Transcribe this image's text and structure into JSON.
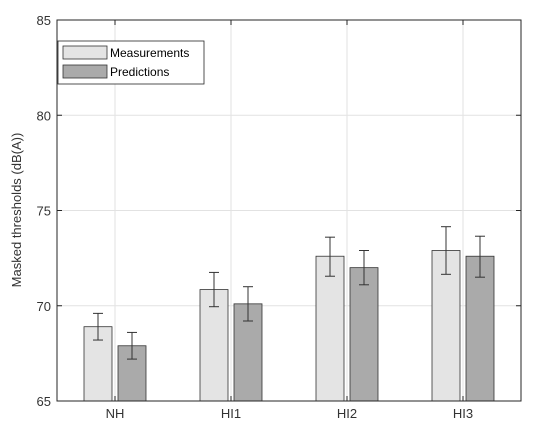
{
  "chart_data": {
    "type": "bar",
    "categories": [
      "NH",
      "HI1",
      "HI2",
      "HI3"
    ],
    "series": [
      {
        "name": "Measurements",
        "color": "#e4e4e4",
        "values": [
          68.9,
          70.85,
          72.6,
          72.9
        ],
        "error_low": [
          68.2,
          69.95,
          71.55,
          71.65
        ],
        "error_high": [
          69.6,
          71.75,
          73.6,
          74.15
        ]
      },
      {
        "name": "Predictions",
        "color": "#aaaaaa",
        "values": [
          67.9,
          70.1,
          72.0,
          72.6
        ],
        "error_low": [
          67.2,
          69.2,
          71.1,
          71.5
        ],
        "error_high": [
          68.6,
          71.0,
          72.9,
          73.65
        ]
      }
    ],
    "xlabel": "",
    "ylabel": "Masked thresholds (dB(A))",
    "ylim": [
      65,
      85
    ],
    "yticks": [
      65,
      70,
      75,
      80,
      85
    ],
    "grid": true,
    "legend_position": "top-left"
  }
}
